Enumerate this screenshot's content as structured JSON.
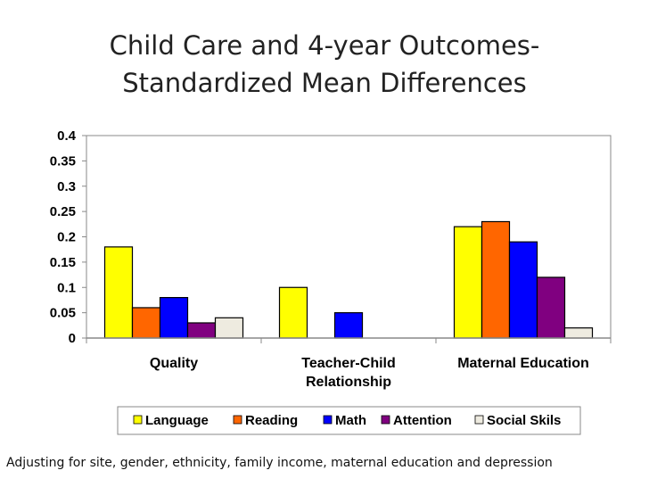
{
  "chart_data": {
    "type": "bar",
    "title": [
      "Child Care and 4-year Outcomes-",
      "Standardized Mean Differences"
    ],
    "categories": [
      [
        "Quality"
      ],
      [
        "Teacher-Child",
        "Relationship"
      ],
      [
        "Maternal Education"
      ]
    ],
    "series": [
      {
        "name": "Language",
        "color": "#ffff00",
        "values": [
          0.18,
          0.1,
          0.22
        ]
      },
      {
        "name": "Reading",
        "color": "#ff6600",
        "values": [
          0.06,
          null,
          0.23
        ]
      },
      {
        "name": "Math",
        "color": "#0000ff",
        "values": [
          0.08,
          0.05,
          0.19
        ]
      },
      {
        "name": "Attention",
        "color": "#800080",
        "values": [
          0.03,
          null,
          0.12
        ]
      },
      {
        "name": "Social Skils",
        "color": "#eeebe0",
        "values": [
          0.04,
          null,
          0.02
        ]
      }
    ],
    "ylim": [
      0,
      0.4
    ],
    "yticks": [
      "0",
      "0.05",
      "0.1",
      "0.15",
      "0.2",
      "0.25",
      "0.3",
      "0.35",
      "0.4"
    ],
    "xlabel": "",
    "ylabel": "",
    "grid": false,
    "legend": "bottom"
  },
  "footnote": "Adjusting for site, gender, ethnicity, family income,  maternal education and depression"
}
